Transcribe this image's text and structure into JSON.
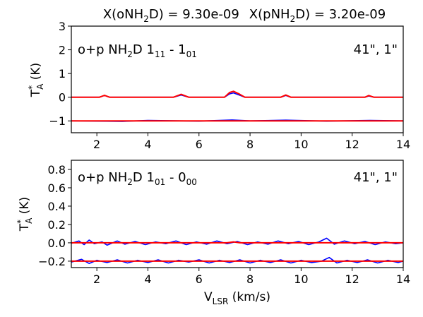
{
  "title": {
    "left_pre": "X(oNH",
    "left_sub": "2",
    "left_post": "D) = 9.30e-09",
    "right_pre": "X(pNH",
    "right_sub": "2",
    "right_post": "D) = 3.20e-09"
  },
  "colors": {
    "observed": "#0000ff",
    "model": "#ff0000",
    "axes": "#000000"
  },
  "xlabel": {
    "main": "V",
    "sub": "LSR",
    "rest": " (km/s)"
  },
  "ylabel": {
    "main": "T",
    "sup": "*",
    "sub": "A",
    "rest": " (K)"
  },
  "chart_data": [
    {
      "type": "line",
      "panel": "top",
      "annotation": {
        "left_pre": "o+p NH",
        "left_sub2": "2",
        "left_mid": "D 1",
        "left_subA": "11",
        "left_dash": " - 1",
        "left_subB": "01",
        "right": "41\", 1\""
      },
      "xlim": [
        1,
        14
      ],
      "ylim": [
        -1.5,
        3
      ],
      "xticks": [
        2,
        4,
        6,
        8,
        10,
        12,
        14
      ],
      "xtick_labels": [
        "2",
        "4",
        "6",
        "8",
        "10",
        "12",
        "14"
      ],
      "yticks": [
        -1,
        0,
        1,
        2,
        3
      ],
      "ytick_labels": [
        "−1",
        "0",
        "1",
        "2",
        "3"
      ],
      "grid": false,
      "series": [
        {
          "role": "observed",
          "color": "#0000ff",
          "offset": 0,
          "points": [
            [
              1,
              0.0
            ],
            [
              2.1,
              0.0
            ],
            [
              2.3,
              0.07
            ],
            [
              2.5,
              0.0
            ],
            [
              5.0,
              0.0
            ],
            [
              5.3,
              0.09
            ],
            [
              5.6,
              0.0
            ],
            [
              7.0,
              0.0
            ],
            [
              7.2,
              0.14
            ],
            [
              7.35,
              0.18
            ],
            [
              7.55,
              0.1
            ],
            [
              7.8,
              0.0
            ],
            [
              9.2,
              0.0
            ],
            [
              9.4,
              0.07
            ],
            [
              9.6,
              0.0
            ],
            [
              12.5,
              0.0
            ],
            [
              12.65,
              0.05
            ],
            [
              12.85,
              0.0
            ],
            [
              14,
              0.0
            ]
          ]
        },
        {
          "role": "model",
          "color": "#ff0000",
          "offset": 0,
          "points": [
            [
              1,
              0.0
            ],
            [
              2.1,
              0.0
            ],
            [
              2.3,
              0.08
            ],
            [
              2.5,
              0.0
            ],
            [
              5.0,
              0.0
            ],
            [
              5.3,
              0.12
            ],
            [
              5.6,
              0.0
            ],
            [
              7.0,
              0.0
            ],
            [
              7.2,
              0.2
            ],
            [
              7.35,
              0.25
            ],
            [
              7.55,
              0.15
            ],
            [
              7.8,
              0.0
            ],
            [
              9.2,
              0.0
            ],
            [
              9.4,
              0.09
            ],
            [
              9.6,
              0.0
            ],
            [
              12.5,
              0.0
            ],
            [
              12.65,
              0.07
            ],
            [
              12.85,
              0.0
            ],
            [
              14,
              0.0
            ]
          ]
        },
        {
          "role": "observed",
          "color": "#0000ff",
          "offset": -1,
          "points": [
            [
              1,
              -1.0
            ],
            [
              3,
              -1.02
            ],
            [
              4,
              -0.98
            ],
            [
              6,
              -1.01
            ],
            [
              7.3,
              -0.96
            ],
            [
              8,
              -1.0
            ],
            [
              9.4,
              -0.97
            ],
            [
              11,
              -1.01
            ],
            [
              12.7,
              -0.98
            ],
            [
              14,
              -1.0
            ]
          ]
        },
        {
          "role": "model",
          "color": "#ff0000",
          "offset": -1,
          "points": [
            [
              1,
              -1.0
            ],
            [
              14,
              -1.0
            ]
          ]
        }
      ]
    },
    {
      "type": "line",
      "panel": "bottom",
      "annotation": {
        "left_pre": "o+p NH",
        "left_sub2": "2",
        "left_mid": "D 1",
        "left_subA": "01",
        "left_dash": " - 0",
        "left_subB": "00",
        "right": "41\", 1\""
      },
      "xlim": [
        1,
        14
      ],
      "ylim": [
        -0.27,
        0.9
      ],
      "xticks": [
        2,
        4,
        6,
        8,
        10,
        12,
        14
      ],
      "xtick_labels": [
        "2",
        "4",
        "6",
        "8",
        "10",
        "12",
        "14"
      ],
      "yticks": [
        -0.2,
        0.0,
        0.2,
        0.4,
        0.6,
        0.8
      ],
      "ytick_labels": [
        "−0.2",
        "0.0",
        "0.2",
        "0.4",
        "0.6",
        "0.8"
      ],
      "grid": false,
      "series": [
        {
          "role": "observed",
          "color": "#0000ff",
          "offset": 0,
          "points": [
            [
              1.0,
              -0.005
            ],
            [
              1.3,
              0.02
            ],
            [
              1.5,
              -0.02
            ],
            [
              1.7,
              0.03
            ],
            [
              1.9,
              -0.01
            ],
            [
              2.2,
              0.01
            ],
            [
              2.4,
              -0.025
            ],
            [
              2.8,
              0.02
            ],
            [
              3.1,
              -0.015
            ],
            [
              3.5,
              0.015
            ],
            [
              3.9,
              -0.02
            ],
            [
              4.3,
              0.01
            ],
            [
              4.7,
              -0.01
            ],
            [
              5.1,
              0.02
            ],
            [
              5.5,
              -0.02
            ],
            [
              5.9,
              0.01
            ],
            [
              6.3,
              -0.015
            ],
            [
              6.7,
              0.02
            ],
            [
              7.1,
              -0.01
            ],
            [
              7.5,
              0.015
            ],
            [
              7.9,
              -0.02
            ],
            [
              8.3,
              0.01
            ],
            [
              8.7,
              -0.015
            ],
            [
              9.1,
              0.02
            ],
            [
              9.5,
              -0.01
            ],
            [
              9.9,
              0.015
            ],
            [
              10.3,
              -0.02
            ],
            [
              10.7,
              0.01
            ],
            [
              11.0,
              0.05
            ],
            [
              11.3,
              -0.015
            ],
            [
              11.7,
              0.02
            ],
            [
              12.1,
              -0.01
            ],
            [
              12.5,
              0.015
            ],
            [
              12.9,
              -0.02
            ],
            [
              13.3,
              0.01
            ],
            [
              13.7,
              -0.01
            ],
            [
              14.0,
              0.0
            ]
          ]
        },
        {
          "role": "model",
          "color": "#ff0000",
          "offset": 0,
          "points": [
            [
              1,
              0.0
            ],
            [
              7.1,
              0.0
            ],
            [
              7.35,
              0.01
            ],
            [
              7.6,
              0.0
            ],
            [
              14,
              0.0
            ]
          ]
        },
        {
          "role": "observed",
          "color": "#0000ff",
          "offset": -0.2,
          "points": [
            [
              1.0,
              -0.21
            ],
            [
              1.4,
              -0.18
            ],
            [
              1.7,
              -0.225
            ],
            [
              2.0,
              -0.19
            ],
            [
              2.4,
              -0.215
            ],
            [
              2.8,
              -0.185
            ],
            [
              3.2,
              -0.22
            ],
            [
              3.6,
              -0.19
            ],
            [
              4.0,
              -0.215
            ],
            [
              4.4,
              -0.185
            ],
            [
              4.8,
              -0.22
            ],
            [
              5.2,
              -0.19
            ],
            [
              5.6,
              -0.21
            ],
            [
              6.0,
              -0.185
            ],
            [
              6.4,
              -0.22
            ],
            [
              6.8,
              -0.19
            ],
            [
              7.2,
              -0.215
            ],
            [
              7.6,
              -0.185
            ],
            [
              8.0,
              -0.22
            ],
            [
              8.4,
              -0.19
            ],
            [
              8.8,
              -0.215
            ],
            [
              9.2,
              -0.185
            ],
            [
              9.6,
              -0.22
            ],
            [
              10.0,
              -0.19
            ],
            [
              10.4,
              -0.215
            ],
            [
              10.8,
              -0.2
            ],
            [
              11.1,
              -0.16
            ],
            [
              11.4,
              -0.22
            ],
            [
              11.8,
              -0.19
            ],
            [
              12.2,
              -0.215
            ],
            [
              12.6,
              -0.185
            ],
            [
              13.0,
              -0.22
            ],
            [
              13.4,
              -0.19
            ],
            [
              13.8,
              -0.215
            ],
            [
              14.0,
              -0.2
            ]
          ]
        },
        {
          "role": "model",
          "color": "#ff0000",
          "offset": -0.2,
          "points": [
            [
              1,
              -0.2
            ],
            [
              14,
              -0.2
            ]
          ]
        }
      ]
    }
  ]
}
